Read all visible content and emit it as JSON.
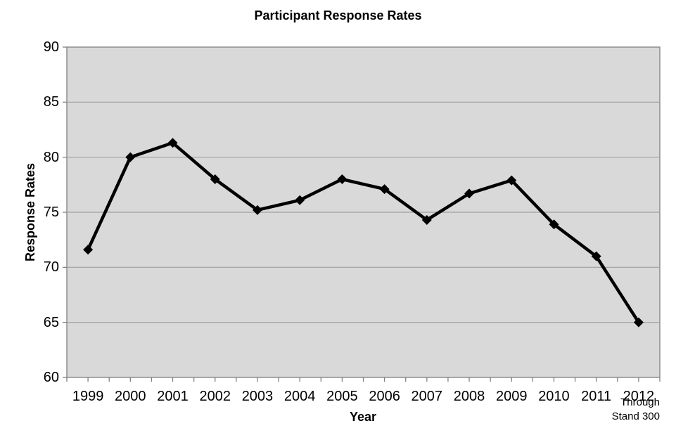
{
  "title": "Participant Response Rates",
  "chart_data": {
    "type": "line",
    "title": "Participant Response Rates",
    "xlabel": "Year",
    "ylabel": "Response Rates",
    "categories": [
      "1999",
      "2000",
      "2001",
      "2002",
      "2003",
      "2004",
      "2005",
      "2006",
      "2007",
      "2008",
      "2009",
      "2010",
      "2011",
      "2012"
    ],
    "series": [
      {
        "name": "Response Rates",
        "values": [
          71.6,
          80.0,
          81.3,
          78.0,
          75.2,
          76.1,
          78.0,
          77.1,
          74.3,
          76.7,
          77.9,
          73.9,
          71.0,
          65.0
        ]
      }
    ],
    "ylim": [
      60,
      90
    ],
    "yticks": [
      60,
      65,
      70,
      75,
      80,
      85,
      90
    ],
    "grid": true,
    "legend": "none",
    "marker": "diamond",
    "annotation": "Through\nStand 300",
    "colors": {
      "plot_bg": "#d9d9d9",
      "grid": "#9e9e9e",
      "axis": "#808080",
      "line": "#000000",
      "marker": "#000000",
      "text": "#000000"
    }
  }
}
